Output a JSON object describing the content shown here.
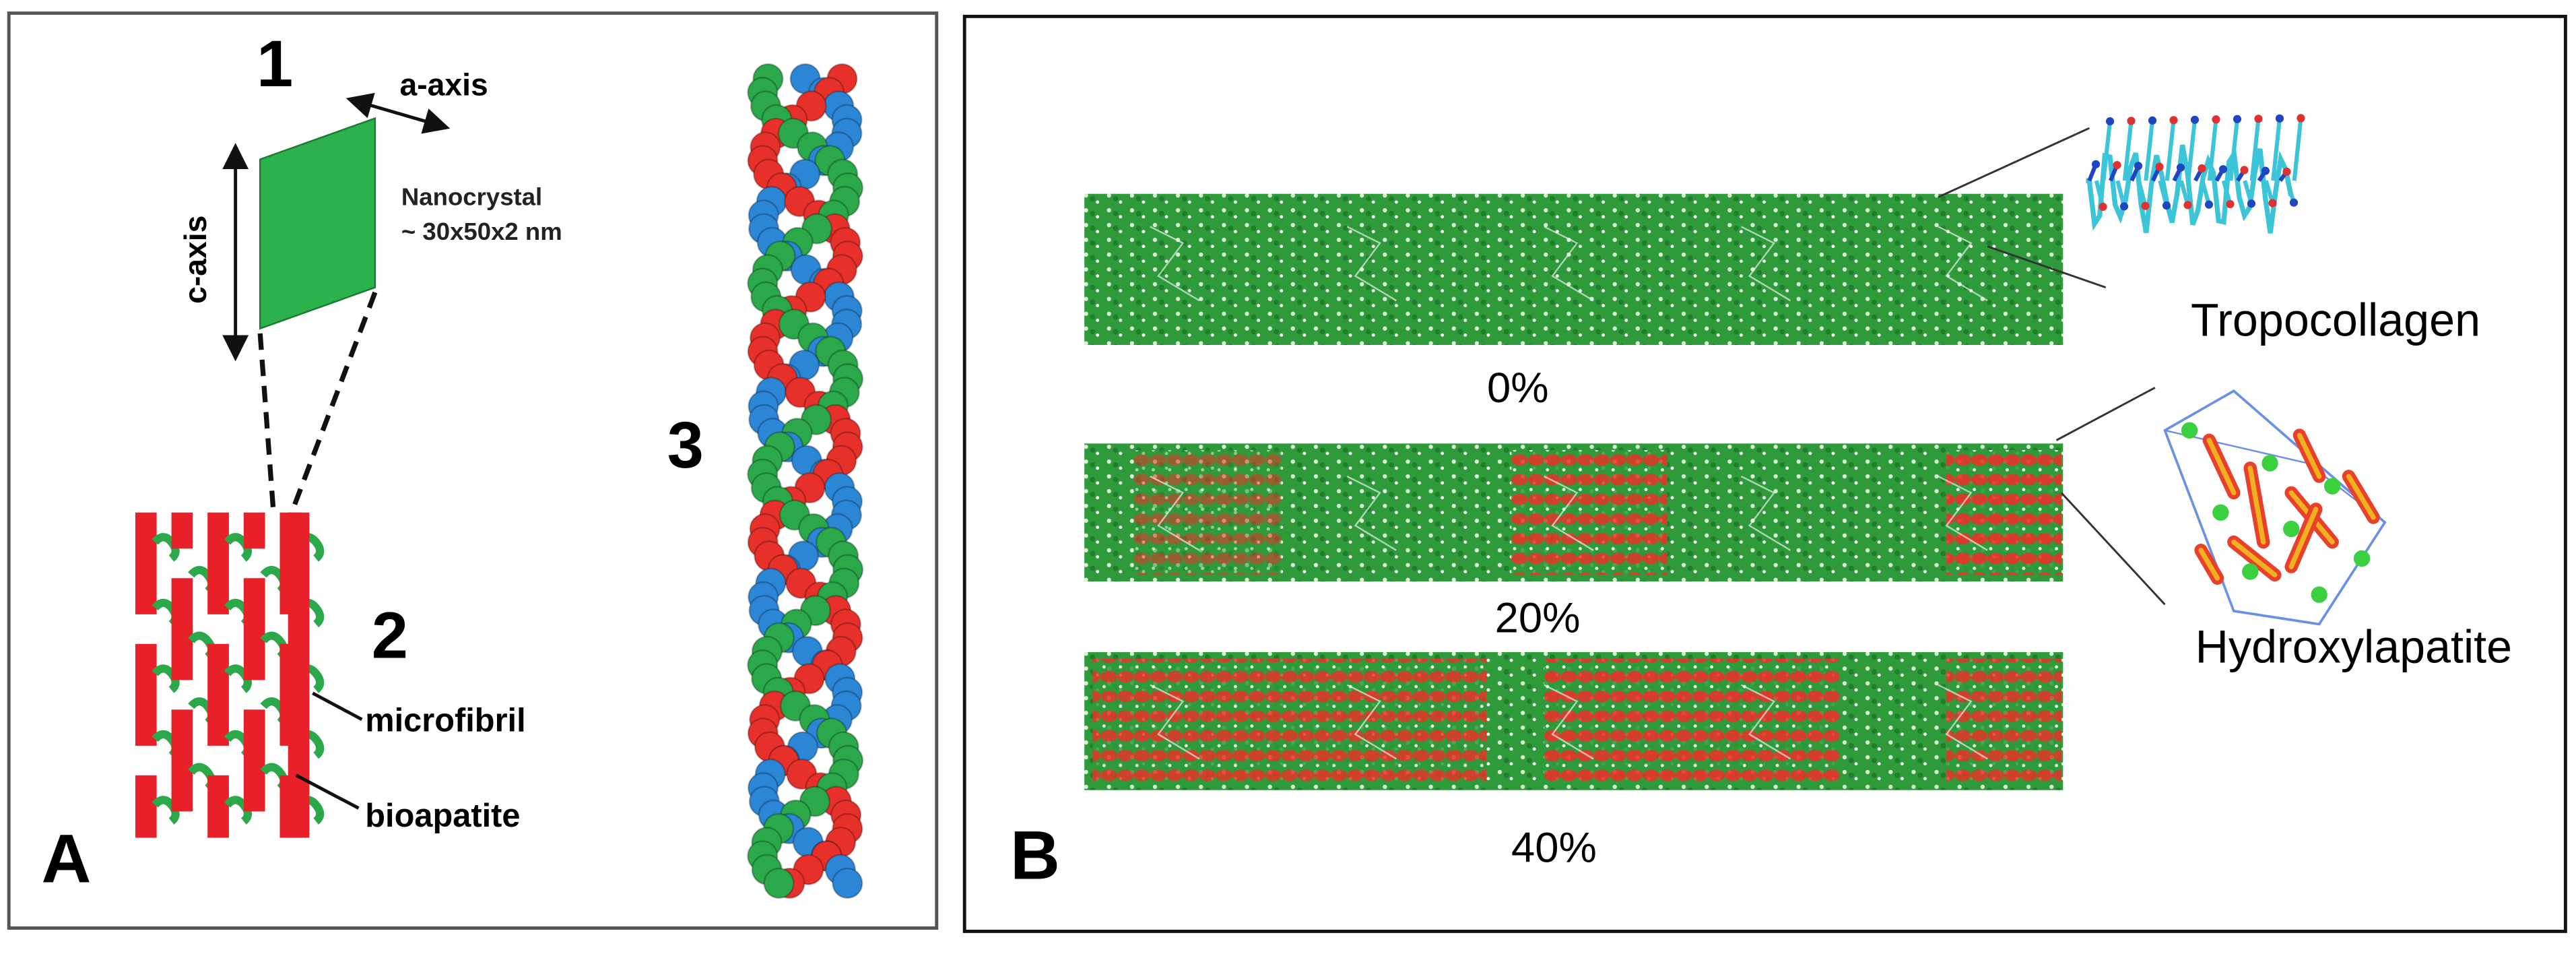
{
  "panel_a": {
    "label": "A",
    "crystal": {
      "number": "1",
      "a_axis": "a-axis",
      "c_axis": "c-axis",
      "description_line1": "Nanocrystal",
      "description_line2": "~ 30x50x2 nm"
    },
    "fibril": {
      "number": "2",
      "microfibril": "microfibril",
      "bioapatite": "bioapatite"
    },
    "helix": {
      "number": "3"
    }
  },
  "panel_b": {
    "label": "B",
    "models": [
      {
        "label": "0%"
      },
      {
        "label": "20%"
      },
      {
        "label": "40%"
      }
    ],
    "insets": [
      {
        "label": "Tropocollagen"
      },
      {
        "label": "Hydroxylapatite"
      }
    ]
  }
}
